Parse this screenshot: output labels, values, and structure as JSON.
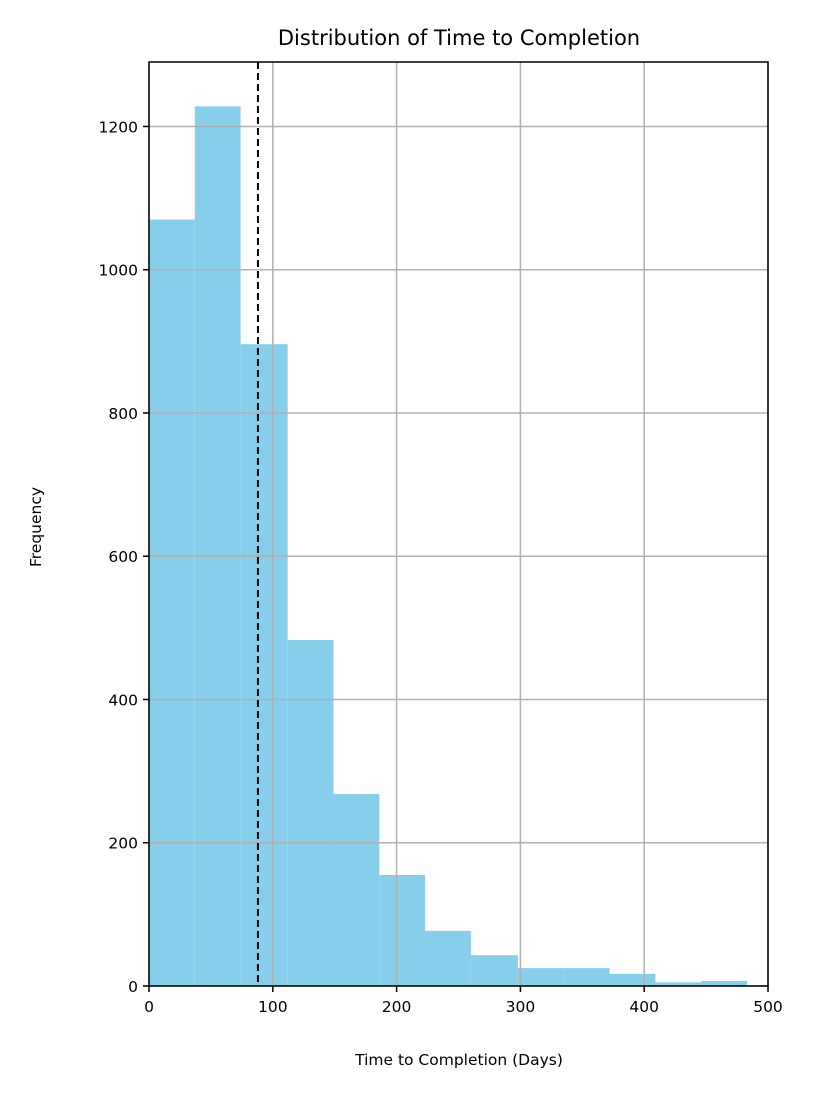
{
  "chart_data": {
    "type": "bar",
    "title": "Distribution of Time to Completion",
    "xlabel": "Time to Completion (Days)",
    "ylabel": "Frequency",
    "xlim": [
      0,
      500
    ],
    "ylim": [
      0,
      1290
    ],
    "x_ticks": [
      0,
      100,
      200,
      300,
      400,
      500
    ],
    "y_ticks": [
      0,
      200,
      400,
      600,
      800,
      1000,
      1200
    ],
    "grid": true,
    "bins": [
      {
        "start": 0,
        "end": 37,
        "count": 1070
      },
      {
        "start": 37,
        "end": 74,
        "count": 1228
      },
      {
        "start": 74,
        "end": 112,
        "count": 896
      },
      {
        "start": 112,
        "end": 149,
        "count": 483
      },
      {
        "start": 149,
        "end": 186,
        "count": 268
      },
      {
        "start": 186,
        "end": 223,
        "count": 155
      },
      {
        "start": 223,
        "end": 260,
        "count": 77
      },
      {
        "start": 260,
        "end": 298,
        "count": 43
      },
      {
        "start": 298,
        "end": 335,
        "count": 25
      },
      {
        "start": 335,
        "end": 372,
        "count": 25
      },
      {
        "start": 372,
        "end": 409,
        "count": 17
      },
      {
        "start": 409,
        "end": 446,
        "count": 5
      },
      {
        "start": 446,
        "end": 483,
        "count": 7
      }
    ],
    "reference_line": {
      "x": 88,
      "style": "dashed"
    },
    "colors": {
      "bar": "#87ceeb",
      "grid": "#b0b0b0",
      "reference_line": "#000000",
      "axes": "#000000"
    }
  }
}
